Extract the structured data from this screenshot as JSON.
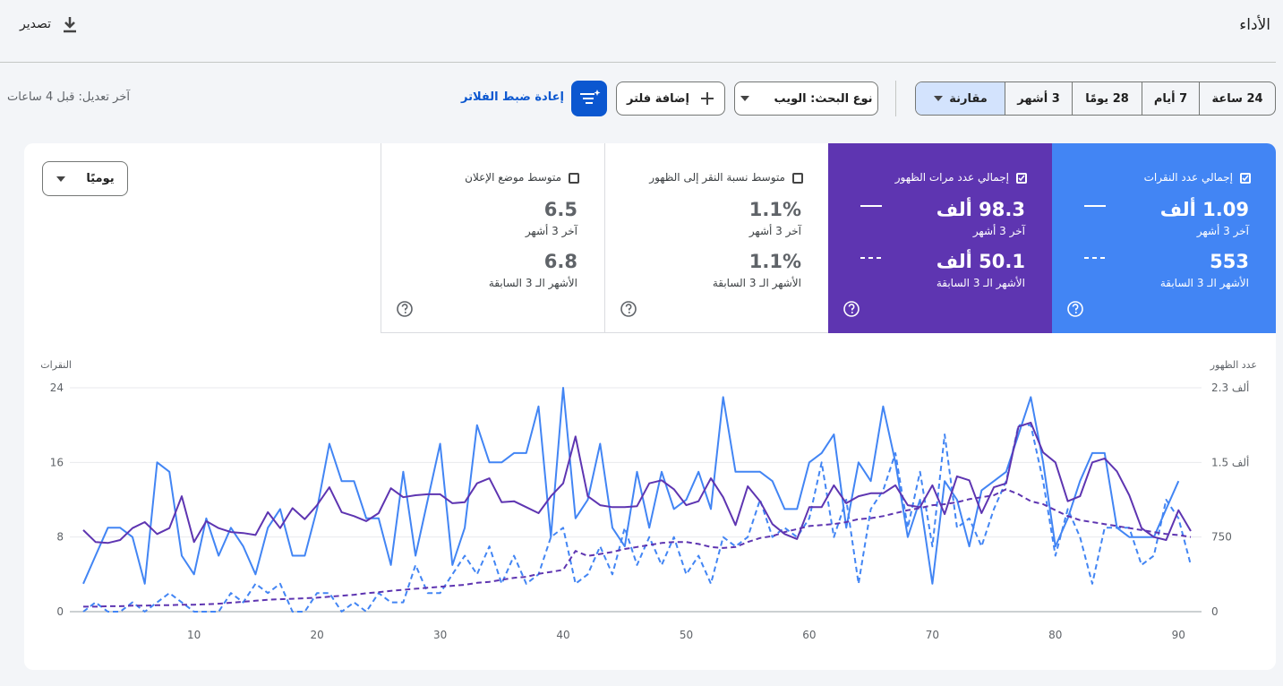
{
  "header": {
    "title": "الأداء",
    "export": "تصدير"
  },
  "toolbar": {
    "date_ranges": [
      "24 ساعة",
      "7 أيام",
      "28 يومًا",
      "3 أشهر"
    ],
    "compare": "مقارنة",
    "search_type": "نوع البحث: الويب",
    "add_filter": "إضافة فلتر",
    "reset_filters": "إعادة ضبط الفلاتر",
    "last_updated": "آخر تعديل: قبل 4 ساعات"
  },
  "cards": [
    {
      "label": "إجمالي عدد النقرات",
      "current_value": "1.09 ألف",
      "current_period": "آخر 3 أشهر",
      "previous_value": "553",
      "previous_period": "الأشهر الـ 3 السابقة",
      "selected": true,
      "color": "#4285f4"
    },
    {
      "label": "إجمالي عدد مرات الظهور",
      "current_value": "98.3 ألف",
      "current_period": "آخر 3 أشهر",
      "previous_value": "50.1 ألف",
      "previous_period": "الأشهر الـ 3 السابقة",
      "selected": true,
      "color": "#5e35b1"
    },
    {
      "label": "متوسط نسبة النقر إلى الظهور",
      "current_value": "1.1%",
      "current_period": "آخر 3 أشهر",
      "previous_value": "1.1%",
      "previous_period": "الأشهر الـ 3 السابقة",
      "selected": false,
      "color": "#ffffff"
    },
    {
      "label": "متوسط موضع الإعلان",
      "current_value": "6.5",
      "current_period": "آخر 3 أشهر",
      "previous_value": "6.8",
      "previous_period": "الأشهر الـ 3 السابقة",
      "selected": false,
      "color": "#ffffff"
    }
  ],
  "granularity": "يوميًا",
  "chart_data": {
    "type": "line",
    "ylabel": "النقرات",
    "y2label": "عدد الظهور",
    "x": [
      1,
      2,
      3,
      4,
      5,
      6,
      7,
      8,
      9,
      10,
      11,
      12,
      13,
      14,
      15,
      16,
      17,
      18,
      19,
      20,
      21,
      22,
      23,
      24,
      25,
      26,
      27,
      28,
      29,
      30,
      31,
      32,
      33,
      34,
      35,
      36,
      37,
      38,
      39,
      40,
      41,
      42,
      43,
      44,
      45,
      46,
      47,
      48,
      49,
      50,
      51,
      52,
      53,
      54,
      55,
      56,
      57,
      58,
      59,
      60,
      61,
      62,
      63,
      64,
      65,
      66,
      67,
      68,
      69,
      70,
      71,
      72,
      73,
      74,
      75,
      76,
      77,
      78,
      79,
      80,
      81,
      82,
      83,
      84,
      85,
      86,
      87,
      88,
      89,
      90,
      91
    ],
    "xlim": [
      1,
      91
    ],
    "xticks": [
      10,
      20,
      30,
      40,
      50,
      60,
      70,
      80,
      90
    ],
    "ylim": [
      0,
      24
    ],
    "yticks": [
      0,
      8,
      16,
      24
    ],
    "y2lim": [
      0,
      2250
    ],
    "y2ticks": [
      0,
      750,
      {
        "value": 1500,
        "label": "1.5 ألف"
      },
      {
        "value": 2250,
        "label": "2.3 ألف"
      }
    ],
    "grid": true,
    "series": [
      {
        "color": "#4285f4",
        "line_style": "solid",
        "axis": "y",
        "values": [
          3,
          6,
          9,
          9,
          8,
          3,
          16,
          15,
          6,
          4,
          10,
          6,
          9,
          7,
          4,
          9,
          11,
          6,
          6,
          11,
          18,
          14,
          14,
          10,
          10,
          5,
          15,
          6,
          12,
          18,
          5,
          9,
          20,
          16,
          16,
          17,
          17,
          22,
          8,
          24,
          10,
          12,
          18,
          9,
          7,
          15,
          9,
          15,
          11,
          12,
          15,
          11,
          23,
          15,
          15,
          15,
          14,
          11,
          11,
          16,
          17,
          19,
          9,
          16,
          14,
          22,
          16,
          8,
          12,
          3,
          14,
          12,
          7,
          13,
          14,
          15,
          19,
          23,
          16,
          7,
          10,
          14,
          17,
          17,
          9,
          8,
          8,
          8,
          11,
          14,
          null
        ]
      },
      {
        "color": "#4285f4",
        "line_style": "dashed",
        "axis": "y",
        "values": [
          0,
          1,
          0,
          0,
          1,
          0,
          1,
          2,
          1,
          0,
          0,
          0,
          2,
          1,
          3,
          2,
          3,
          0,
          0,
          2,
          2,
          0,
          1,
          0,
          2,
          1,
          1,
          5,
          2,
          2,
          4,
          6,
          4,
          7,
          3,
          6,
          3,
          4,
          8,
          9,
          3,
          4,
          7,
          4,
          9,
          5,
          8,
          5,
          8,
          4,
          6,
          3,
          8,
          7,
          8,
          12,
          8,
          9,
          8,
          10,
          16,
          8,
          12,
          3,
          11,
          13,
          17,
          9,
          15,
          7,
          19,
          9,
          10,
          7,
          11,
          14,
          20,
          20,
          14,
          6,
          11,
          8,
          3,
          9,
          9,
          9,
          5,
          6,
          12,
          10,
          5
        ]
      },
      {
        "color": "#5e35b1",
        "line_style": "solid",
        "axis": "y2",
        "values": [
          820,
          700,
          690,
          720,
          840,
          900,
          780,
          840,
          1160,
          700,
          910,
          840,
          800,
          790,
          770,
          1000,
          840,
          1040,
          930,
          1070,
          1250,
          1000,
          960,
          910,
          990,
          1240,
          1150,
          1170,
          1180,
          1180,
          1090,
          1100,
          1290,
          1340,
          1100,
          1110,
          1050,
          990,
          1160,
          1290,
          1760,
          1160,
          1070,
          1050,
          1050,
          1060,
          1290,
          1320,
          1230,
          1070,
          1110,
          1340,
          1150,
          870,
          1260,
          1110,
          880,
          780,
          730,
          1050,
          1050,
          1270,
          1090,
          1160,
          1190,
          1190,
          1270,
          1070,
          1050,
          1270,
          980,
          1360,
          1320,
          990,
          1250,
          1290,
          1860,
          1900,
          1600,
          1500,
          1110,
          1160,
          1500,
          1540,
          1410,
          1170,
          840,
          750,
          720,
          1020,
          810
        ]
      },
      {
        "color": "#5e35b1",
        "line_style": "dashed",
        "axis": "y2",
        "values": [
          50,
          50,
          55,
          55,
          60,
          60,
          65,
          65,
          70,
          70,
          75,
          80,
          90,
          100,
          110,
          120,
          125,
          130,
          135,
          140,
          150,
          160,
          170,
          185,
          195,
          210,
          220,
          230,
          240,
          250,
          260,
          270,
          290,
          300,
          320,
          340,
          350,
          380,
          400,
          420,
          610,
          560,
          580,
          600,
          630,
          650,
          670,
          690,
          700,
          700,
          680,
          650,
          640,
          650,
          700,
          740,
          760,
          800,
          830,
          860,
          870,
          880,
          900,
          930,
          940,
          960,
          990,
          1020,
          1040,
          1070,
          1080,
          1100,
          1130,
          1150,
          1170,
          1230,
          1180,
          1110,
          1080,
          1020,
          960,
          920,
          900,
          880,
          860,
          840,
          820,
          800,
          780,
          770,
          750
        ]
      }
    ]
  }
}
